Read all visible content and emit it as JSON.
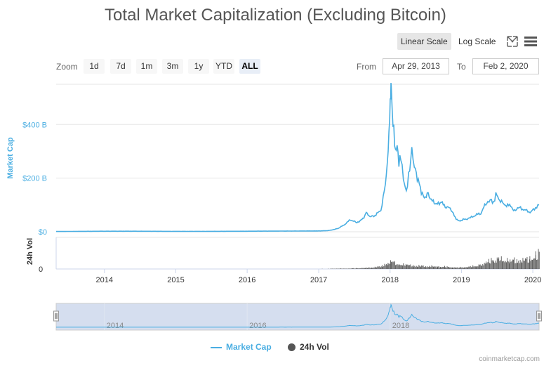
{
  "title": "Total Market Capitalization (Excluding Bitcoin)",
  "toolbar": {
    "linear_label": "Linear Scale",
    "log_label": "Log Scale",
    "fullscreen_icon": "expand-icon",
    "menu_icon": "hamburger-icon"
  },
  "zoom": {
    "label": "Zoom",
    "buttons": [
      "1d",
      "7d",
      "1m",
      "3m",
      "1y",
      "YTD",
      "ALL"
    ],
    "active": "ALL"
  },
  "range": {
    "from_label": "From",
    "from_value": "Apr 29, 2013",
    "to_label": "To",
    "to_value": "Feb 2, 2020"
  },
  "colors": {
    "market_cap": "#4aaee2",
    "volume": "#555555",
    "navigator_fill": "#d5deef"
  },
  "chart_data": {
    "type": "line",
    "x_axis": {
      "type": "date",
      "range": [
        "2013-04-29",
        "2020-02-02"
      ],
      "tick_labels": [
        "2014",
        "2015",
        "2016",
        "2017",
        "2018",
        "2019",
        "2020"
      ]
    },
    "y_axis_market_cap": {
      "label": "Market Cap",
      "ylim": [
        0,
        550
      ],
      "unit": "billion USD",
      "tick_labels": [
        "$0",
        "$200 B",
        "$400 B"
      ],
      "tick_values": [
        0,
        200,
        400
      ]
    },
    "y_axis_volume": {
      "label": "24h Vol",
      "tick_labels": [
        "0"
      ],
      "ylim": [
        0,
        90
      ]
    },
    "series": [
      {
        "name": "Market Cap",
        "x": [
          "2013-04-29",
          "2013-12-15",
          "2014-06-01",
          "2015-01-01",
          "2015-06-01",
          "2016-01-01",
          "2016-06-01",
          "2016-12-31",
          "2017-02-15",
          "2017-03-20",
          "2017-04-15",
          "2017-05-15",
          "2017-06-12",
          "2017-07-15",
          "2017-08-20",
          "2017-09-01",
          "2017-09-20",
          "2017-10-15",
          "2017-11-15",
          "2017-12-08",
          "2017-12-22",
          "2017-12-30",
          "2018-01-04",
          "2018-01-07",
          "2018-01-12",
          "2018-01-20",
          "2018-01-28",
          "2018-02-06",
          "2018-02-15",
          "2018-02-25",
          "2018-03-10",
          "2018-03-25",
          "2018-04-06",
          "2018-04-22",
          "2018-05-05",
          "2018-05-20",
          "2018-06-10",
          "2018-06-25",
          "2018-07-15",
          "2018-08-10",
          "2018-08-25",
          "2018-09-15",
          "2018-10-15",
          "2018-11-15",
          "2018-11-25",
          "2018-12-15",
          "2019-01-10",
          "2019-02-10",
          "2019-03-10",
          "2019-04-10",
          "2019-05-10",
          "2019-05-28",
          "2019-06-20",
          "2019-06-26",
          "2019-07-15",
          "2019-08-15",
          "2019-09-15",
          "2019-09-25",
          "2019-10-25",
          "2019-11-25",
          "2019-12-18",
          "2020-01-15",
          "2020-02-02"
        ],
        "values": [
          1,
          2,
          2,
          1.5,
          1.5,
          2,
          2.5,
          3,
          4,
          8,
          14,
          28,
          45,
          34,
          50,
          70,
          55,
          60,
          80,
          180,
          300,
          420,
          500,
          550,
          450,
          390,
          300,
          320,
          250,
          280,
          200,
          150,
          210,
          300,
          240,
          200,
          150,
          130,
          140,
          110,
          100,
          110,
          95,
          80,
          60,
          40,
          45,
          50,
          60,
          70,
          110,
          120,
          110,
          140,
          115,
          100,
          95,
          80,
          90,
          80,
          70,
          90,
          100
        ]
      },
      {
        "name": "24h Vol",
        "x": [
          "2013-04-29",
          "2016-12-31",
          "2017-06-01",
          "2017-09-01",
          "2017-11-15",
          "2017-12-20",
          "2018-01-06",
          "2018-02-15",
          "2018-04-01",
          "2018-06-01",
          "2018-09-01",
          "2018-11-15",
          "2018-12-15",
          "2019-02-01",
          "2019-04-01",
          "2019-05-15",
          "2019-07-01",
          "2019-09-01",
          "2019-11-01",
          "2019-12-15",
          "2020-01-15",
          "2020-02-02"
        ],
        "values": [
          0,
          0.5,
          2,
          4,
          10,
          25,
          30,
          20,
          15,
          12,
          10,
          8,
          6,
          8,
          15,
          30,
          40,
          35,
          35,
          40,
          55,
          65
        ]
      }
    ],
    "legend": [
      "Market Cap",
      "24h Vol"
    ],
    "legend_position": "bottom-center",
    "navigator_tick_labels": [
      "2014",
      "2016",
      "2018"
    ],
    "grid": true
  },
  "credits": "coinmarketcap.com"
}
